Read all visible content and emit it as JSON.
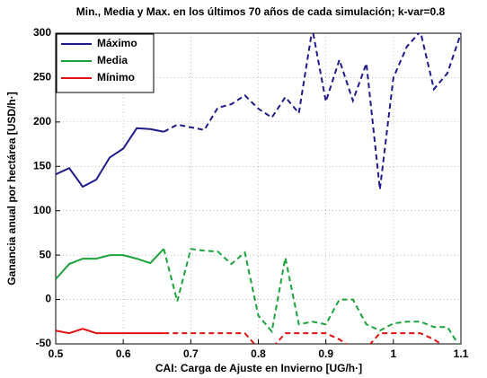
{
  "chart_data": {
    "type": "line",
    "title": "Min., Media y Max. en los últimos 70 años de cada simulación; k-var=0.8",
    "x_label": "CAI: Carga de Ajuste en Invierno [UG/h·]",
    "y_label": "Ganancia anual por hectárea [USD/h·]",
    "xlim": [
      0.5,
      1.1
    ],
    "ylim": [
      -50,
      300
    ],
    "xticks": [
      0.5,
      0.6,
      0.7,
      0.8,
      0.9,
      1,
      1.1
    ],
    "yticks": [
      -50,
      0,
      50,
      100,
      150,
      200,
      250,
      300
    ],
    "grid": true,
    "legend": "upper left",
    "series": [
      {
        "name": "Máximo",
        "color": "#1f1a8c",
        "linestyle": "solid",
        "x": [
          0.5,
          0.52,
          0.54,
          0.56,
          0.58,
          0.6,
          0.62,
          0.64,
          0.66
        ],
        "values": [
          141,
          148,
          127,
          135,
          160,
          170,
          193,
          192,
          189
        ]
      },
      {
        "name": "Media",
        "color": "#1aa33a",
        "linestyle": "solid",
        "x": [
          0.5,
          0.52,
          0.54,
          0.56,
          0.58,
          0.6,
          0.62,
          0.64,
          0.66
        ],
        "values": [
          23,
          40,
          46,
          46,
          50,
          50,
          46,
          41,
          57
        ]
      },
      {
        "name": "Mínimo",
        "color": "#e01010",
        "linestyle": "solid",
        "x": [
          0.5,
          0.52,
          0.54,
          0.56,
          0.58,
          0.6,
          0.62,
          0.64,
          0.66
        ],
        "values": [
          -35,
          -38,
          -33,
          -38,
          -38,
          -38,
          -38,
          -38,
          -38
        ]
      },
      {
        "color": "#1f1a8c",
        "linestyle": "dashed",
        "x": [
          0.66,
          0.68,
          0.7,
          0.72,
          0.74,
          0.76,
          0.78,
          0.8,
          0.82,
          0.84,
          0.86,
          0.88,
          0.9,
          0.92,
          0.94,
          0.96,
          0.98,
          1,
          1.02,
          1.04,
          1.06,
          1.08,
          1.1
        ],
        "values": [
          189,
          197,
          194,
          191,
          216,
          220,
          230,
          215,
          205,
          228,
          210,
          305,
          223,
          270,
          224,
          266,
          124,
          250,
          285,
          302,
          237,
          255,
          300
        ]
      },
      {
        "color": "#1aa33a",
        "linestyle": "dashed",
        "x": [
          0.66,
          0.68,
          0.7,
          0.72,
          0.74,
          0.76,
          0.78,
          0.8,
          0.82,
          0.84,
          0.86,
          0.88,
          0.9,
          0.92,
          0.94,
          0.96,
          0.98,
          1,
          1.02,
          1.04,
          1.06,
          1.08,
          1.1
        ],
        "values": [
          57,
          -2,
          57,
          55,
          54,
          40,
          53,
          -18,
          -36,
          47,
          -28,
          -25,
          -28,
          0,
          0,
          -28,
          -35,
          -27,
          -25,
          -25,
          -31,
          -31,
          -55
        ]
      },
      {
        "color": "#e01010",
        "linestyle": "dashed",
        "x": [
          0.66,
          0.68,
          0.7,
          0.72,
          0.74,
          0.76,
          0.78,
          0.8,
          0.82,
          0.84,
          0.86,
          0.88,
          0.9,
          0.92,
          0.94,
          0.96,
          0.98,
          1,
          1.02,
          1.04,
          1.06,
          1.08,
          1.1
        ],
        "values": [
          -38,
          -38,
          -38,
          -38,
          -38,
          -38,
          -38,
          -55,
          -55,
          -38,
          -38,
          -38,
          -38,
          -45,
          -55,
          -55,
          -38,
          -38,
          -38,
          -38,
          -45,
          -55,
          -55
        ]
      }
    ]
  }
}
